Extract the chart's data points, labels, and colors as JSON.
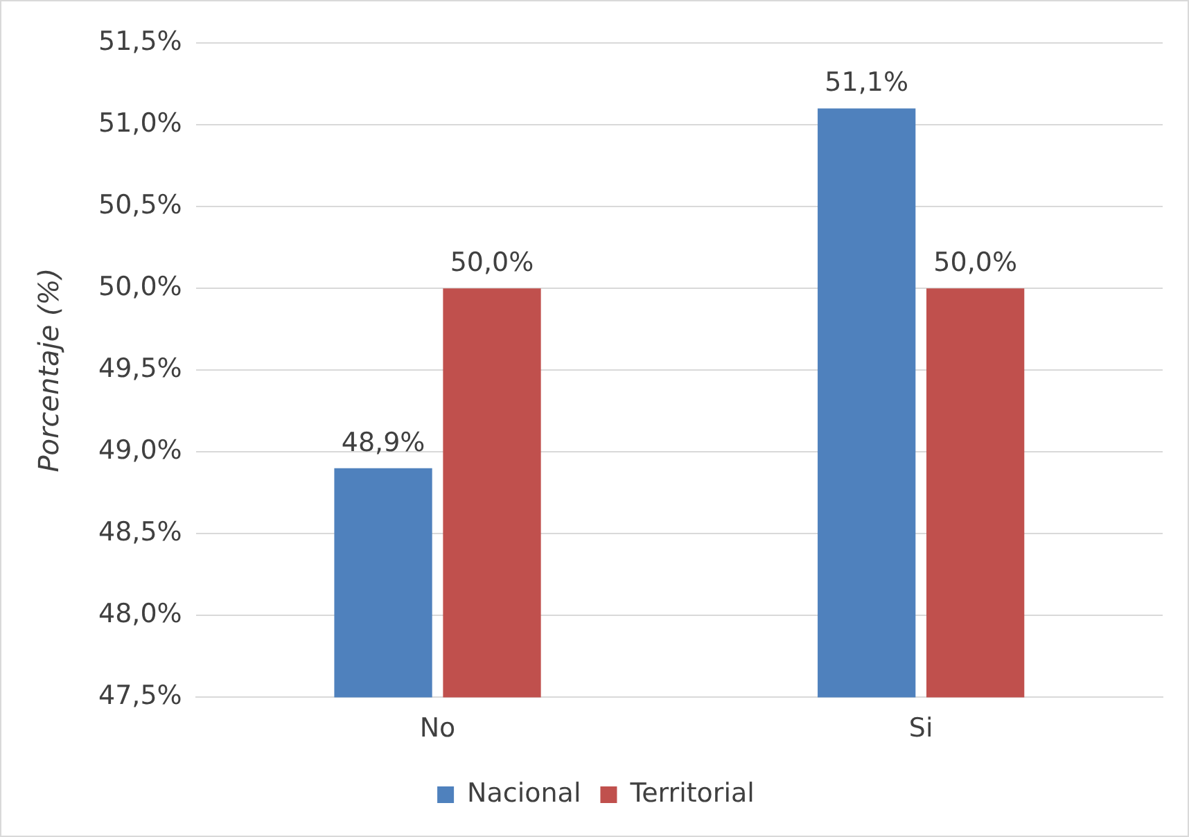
{
  "chart_data": {
    "type": "bar",
    "ylabel": "Porcentaje (%)",
    "categories": [
      "No",
      "Si"
    ],
    "series": [
      {
        "name": "Nacional",
        "color": "#4f81bd",
        "values": [
          48.9,
          51.1
        ],
        "value_labels": [
          "48,9%",
          "51,1%"
        ]
      },
      {
        "name": "Territorial",
        "color": "#c0504d",
        "values": [
          50.0,
          50.0
        ],
        "value_labels": [
          "50,0%",
          "50,0%"
        ]
      }
    ],
    "ylim": [
      47.5,
      51.5
    ],
    "yticks": [
      {
        "value": 47.5,
        "label": "47,5%"
      },
      {
        "value": 48,
        "label": "48,0%"
      },
      {
        "value": 48.5,
        "label": "48,5%"
      },
      {
        "value": 49,
        "label": "49,0%"
      },
      {
        "value": 49.5,
        "label": "49,5%"
      },
      {
        "value": 50,
        "label": "50,0%"
      },
      {
        "value": 50.5,
        "label": "50,5%"
      },
      {
        "value": 51,
        "label": "51,0%"
      },
      {
        "value": 51.5,
        "label": "51,5%"
      }
    ],
    "grid": "y",
    "legend": "bottom"
  }
}
